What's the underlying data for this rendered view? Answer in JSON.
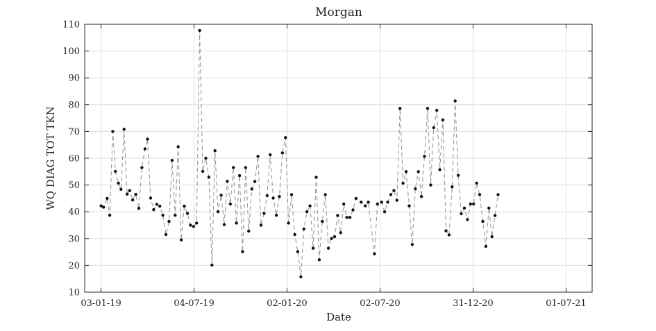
{
  "chart_data": {
    "type": "line",
    "title": "Morgan",
    "xlabel": "Date",
    "ylabel": "WQ DIAG TOT TKN",
    "ylim": [
      10,
      110
    ],
    "yticks": [
      10,
      20,
      30,
      40,
      50,
      60,
      70,
      80,
      90,
      100,
      110
    ],
    "xlim": [
      "2018-12-02",
      "2021-08-21"
    ],
    "xticks": [
      {
        "date": "2019-01-03",
        "label": "03-01-19"
      },
      {
        "date": "2019-07-04",
        "label": "04-07-19"
      },
      {
        "date": "2020-01-02",
        "label": "02-01-20"
      },
      {
        "date": "2020-07-02",
        "label": "02-07-20"
      },
      {
        "date": "2020-12-31",
        "label": "31-12-20"
      },
      {
        "date": "2021-07-01",
        "label": "01-07-21"
      }
    ],
    "grid": true,
    "line_color": "#999999",
    "marker_color": "#111111",
    "series": [
      {
        "points": [
          [
            "2019-01-03",
            42.2
          ],
          [
            "2019-01-08",
            41.7
          ],
          [
            "2019-01-15",
            45.0
          ],
          [
            "2019-01-20",
            38.7
          ],
          [
            "2019-01-26",
            70.0
          ],
          [
            "2019-01-31",
            55.1
          ],
          [
            "2019-02-06",
            50.7
          ],
          [
            "2019-02-11",
            48.4
          ],
          [
            "2019-02-17",
            70.8
          ],
          [
            "2019-02-23",
            46.6
          ],
          [
            "2019-02-28",
            47.9
          ],
          [
            "2019-03-06",
            44.4
          ],
          [
            "2019-03-12",
            46.5
          ],
          [
            "2019-03-18",
            41.3
          ],
          [
            "2019-03-24",
            56.5
          ],
          [
            "2019-03-30",
            63.5
          ],
          [
            "2019-04-04",
            67.1
          ],
          [
            "2019-04-10",
            45.1
          ],
          [
            "2019-04-16",
            40.8
          ],
          [
            "2019-04-22",
            42.8
          ],
          [
            "2019-04-28",
            42.1
          ],
          [
            "2019-05-04",
            38.7
          ],
          [
            "2019-05-10",
            31.5
          ],
          [
            "2019-05-16",
            36.4
          ],
          [
            "2019-05-22",
            59.2
          ],
          [
            "2019-05-28",
            38.7
          ],
          [
            "2019-06-03",
            64.3
          ],
          [
            "2019-06-09",
            29.5
          ],
          [
            "2019-06-15",
            42.1
          ],
          [
            "2019-06-21",
            39.4
          ],
          [
            "2019-06-27",
            35.0
          ],
          [
            "2019-07-03",
            34.5
          ],
          [
            "2019-07-09",
            35.8
          ],
          [
            "2019-07-15",
            107.7
          ],
          [
            "2019-07-21",
            55.1
          ],
          [
            "2019-07-27",
            60.0
          ],
          [
            "2019-08-02",
            52.9
          ],
          [
            "2019-08-08",
            20.1
          ],
          [
            "2019-08-14",
            62.8
          ],
          [
            "2019-08-20",
            40.0
          ],
          [
            "2019-08-26",
            46.2
          ],
          [
            "2019-09-01",
            35.2
          ],
          [
            "2019-09-07",
            51.4
          ],
          [
            "2019-09-13",
            42.9
          ],
          [
            "2019-09-19",
            56.5
          ],
          [
            "2019-09-25",
            35.8
          ],
          [
            "2019-10-01",
            53.5
          ],
          [
            "2019-10-07",
            25.1
          ],
          [
            "2019-10-13",
            56.5
          ],
          [
            "2019-10-19",
            32.8
          ],
          [
            "2019-10-25",
            48.5
          ],
          [
            "2019-10-31",
            51.3
          ],
          [
            "2019-11-06",
            60.7
          ],
          [
            "2019-11-12",
            35.0
          ],
          [
            "2019-11-18",
            39.4
          ],
          [
            "2019-11-24",
            46.0
          ],
          [
            "2019-11-30",
            61.3
          ],
          [
            "2019-12-06",
            45.1
          ],
          [
            "2019-12-12",
            38.7
          ],
          [
            "2019-12-18",
            45.7
          ],
          [
            "2019-12-24",
            62.0
          ],
          [
            "2019-12-30",
            67.7
          ],
          [
            "2020-01-05",
            35.8
          ],
          [
            "2020-01-11",
            46.4
          ],
          [
            "2020-01-17",
            31.5
          ],
          [
            "2020-01-23",
            25.1
          ],
          [
            "2020-01-29",
            15.7
          ],
          [
            "2020-02-04",
            33.6
          ],
          [
            "2020-02-10",
            40.0
          ],
          [
            "2020-02-16",
            42.2
          ],
          [
            "2020-02-22",
            26.4
          ],
          [
            "2020-02-28",
            52.9
          ],
          [
            "2020-03-05",
            22.1
          ],
          [
            "2020-03-11",
            36.4
          ],
          [
            "2020-03-17",
            46.4
          ],
          [
            "2020-03-23",
            26.4
          ],
          [
            "2020-03-29",
            30.0
          ],
          [
            "2020-04-04",
            30.7
          ],
          [
            "2020-04-10",
            38.6
          ],
          [
            "2020-04-16",
            32.2
          ],
          [
            "2020-04-22",
            42.9
          ],
          [
            "2020-04-28",
            37.9
          ],
          [
            "2020-05-04",
            37.9
          ],
          [
            "2020-05-10",
            40.7
          ],
          [
            "2020-05-16",
            45.0
          ],
          [
            "2020-05-26",
            43.6
          ],
          [
            "2020-06-03",
            42.2
          ],
          [
            "2020-06-09",
            43.6
          ],
          [
            "2020-06-21",
            24.3
          ],
          [
            "2020-06-27",
            42.9
          ],
          [
            "2020-07-05",
            43.6
          ],
          [
            "2020-07-11",
            40.0
          ],
          [
            "2020-07-17",
            43.6
          ],
          [
            "2020-07-23",
            46.4
          ],
          [
            "2020-07-29",
            47.9
          ],
          [
            "2020-08-04",
            44.3
          ],
          [
            "2020-08-10",
            78.6
          ],
          [
            "2020-08-16",
            50.7
          ],
          [
            "2020-08-22",
            55.0
          ],
          [
            "2020-08-28",
            42.2
          ],
          [
            "2020-09-03",
            27.8
          ],
          [
            "2020-09-09",
            48.6
          ],
          [
            "2020-09-15",
            55.0
          ],
          [
            "2020-09-21",
            45.7
          ],
          [
            "2020-09-27",
            60.7
          ],
          [
            "2020-10-03",
            78.6
          ],
          [
            "2020-10-09",
            50.0
          ],
          [
            "2020-10-15",
            71.4
          ],
          [
            "2020-10-21",
            77.9
          ],
          [
            "2020-10-27",
            55.7
          ],
          [
            "2020-11-02",
            74.3
          ],
          [
            "2020-11-08",
            32.9
          ],
          [
            "2020-11-14",
            31.4
          ],
          [
            "2020-11-20",
            49.3
          ],
          [
            "2020-11-26",
            81.4
          ],
          [
            "2020-12-02",
            53.6
          ],
          [
            "2020-12-08",
            39.3
          ],
          [
            "2020-12-14",
            41.4
          ],
          [
            "2020-12-20",
            37.1
          ],
          [
            "2020-12-26",
            42.9
          ],
          [
            "2021-01-01",
            42.9
          ],
          [
            "2021-01-07",
            50.7
          ],
          [
            "2021-01-13",
            46.4
          ],
          [
            "2021-01-19",
            36.4
          ],
          [
            "2021-01-25",
            27.1
          ],
          [
            "2021-01-31",
            41.4
          ],
          [
            "2021-02-06",
            30.7
          ],
          [
            "2021-02-12",
            38.6
          ],
          [
            "2021-02-18",
            46.4
          ]
        ]
      }
    ]
  }
}
